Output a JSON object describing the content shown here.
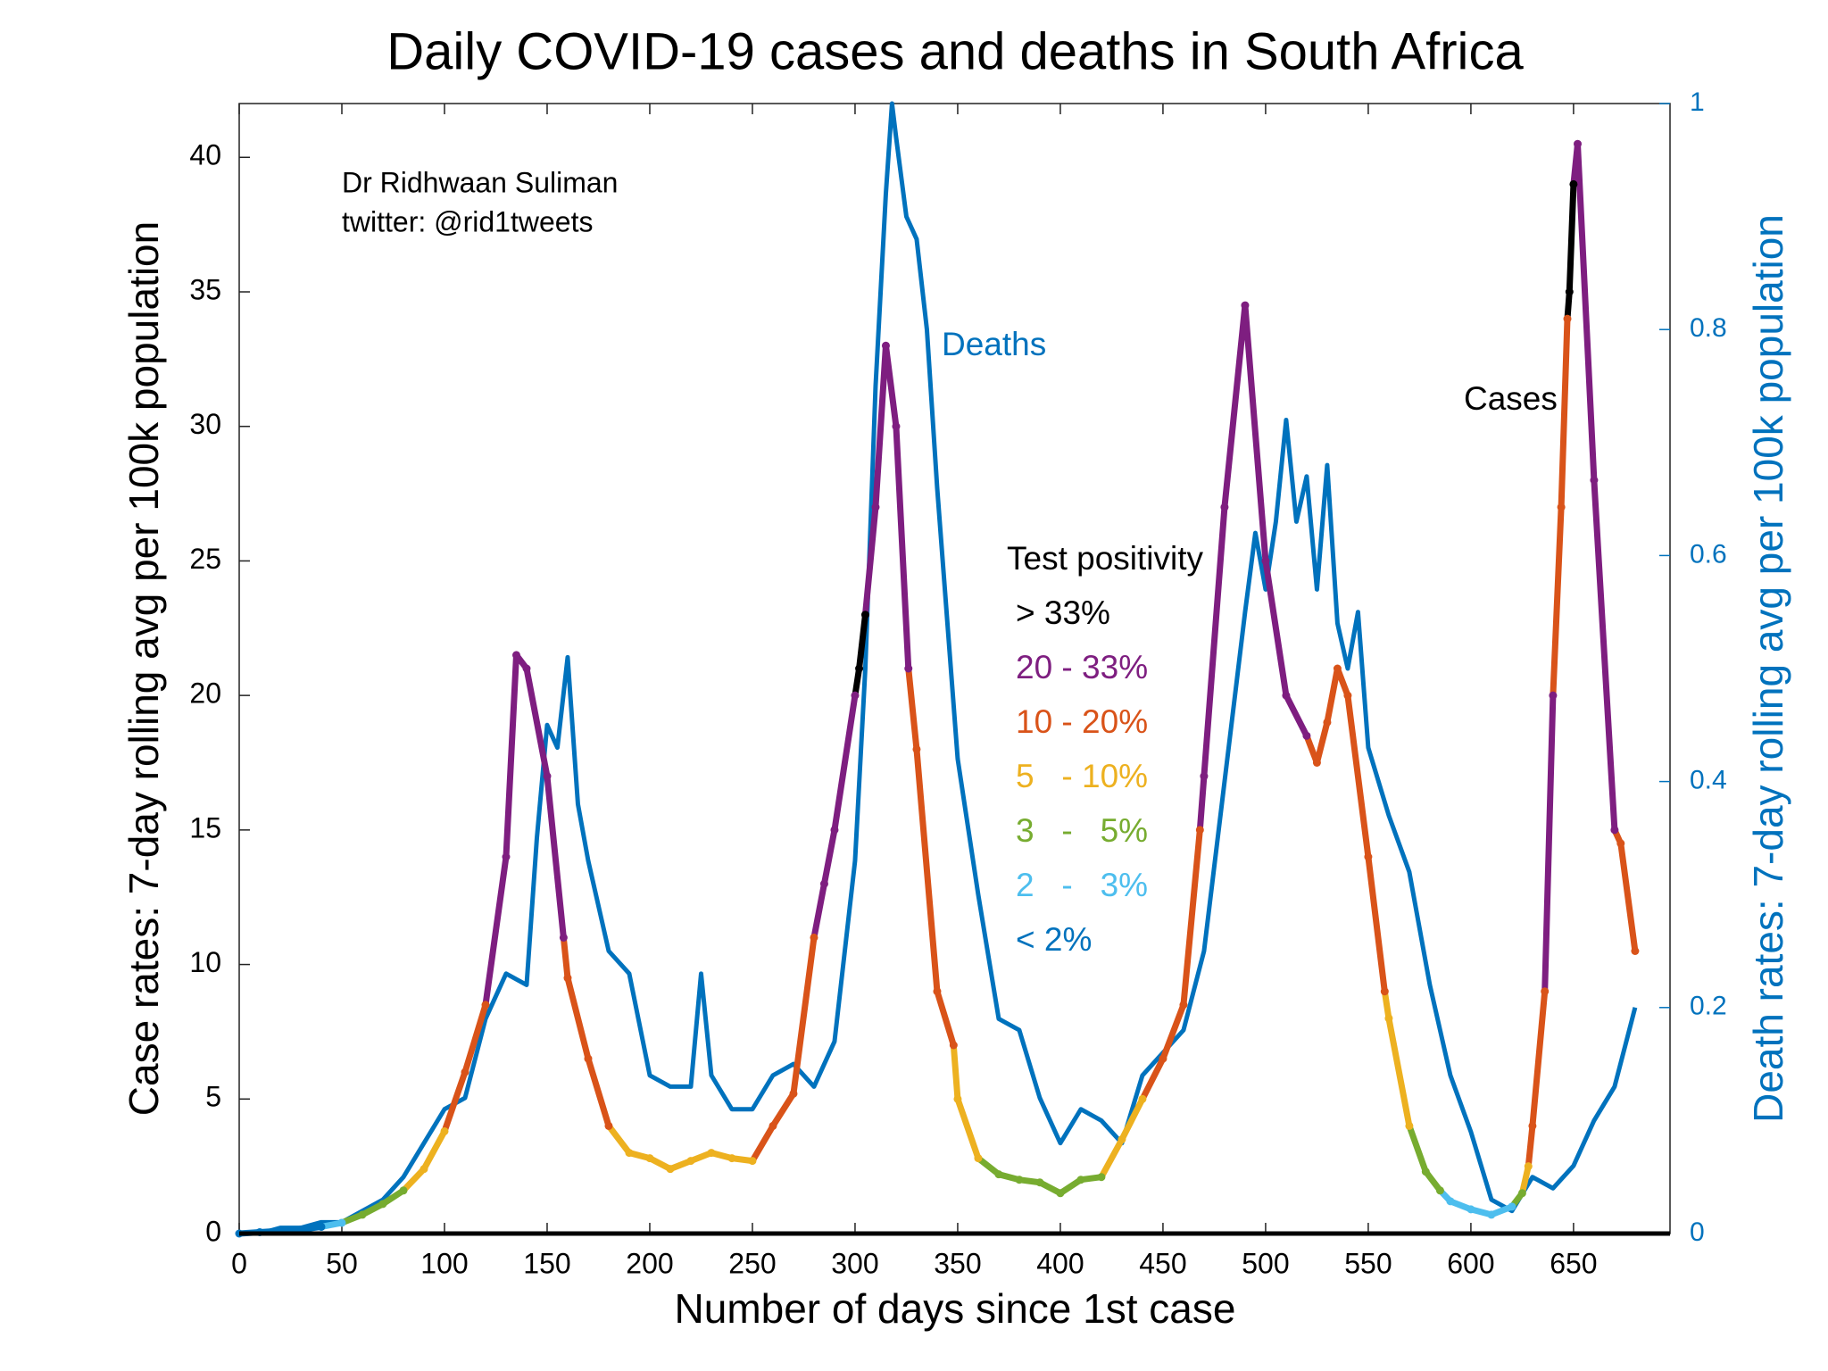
{
  "chart_data": {
    "type": "line",
    "title": "Daily COVID-19 cases and deaths in South Africa",
    "xlabel": "Number of days since 1st case",
    "ylabel": "Case rates: 7-day rolling avg per 100k population",
    "y2label": "Death rates: 7-day rolling avg per 100k population",
    "annotations": [
      "Dr Ridhwaan Suliman",
      "twitter: @rid1tweets"
    ],
    "legend_title": "Test positivity",
    "positivity_legend": [
      {
        "label": "> 33%",
        "color": "#000000"
      },
      {
        "label": "20 - 33%",
        "color": "#7e1e80"
      },
      {
        "label": "10 - 20%",
        "color": "#d95319"
      },
      {
        "label": "5   - 10%",
        "color": "#edb120"
      },
      {
        "label": "3   -   5%",
        "color": "#77ac30"
      },
      {
        "label": "2   -   3%",
        "color": "#4dbeee"
      },
      {
        "label": "< 2%",
        "color": "#0072bd"
      }
    ],
    "xlim": [
      0,
      697
    ],
    "xticks": [
      0,
      50,
      100,
      150,
      200,
      250,
      300,
      350,
      400,
      450,
      500,
      550,
      600,
      650
    ],
    "ylim": [
      0,
      42
    ],
    "yticks": [
      0,
      5,
      10,
      15,
      20,
      25,
      30,
      35,
      40
    ],
    "y2lim": [
      0,
      1
    ],
    "y2ticks": [
      0,
      0.2,
      0.4,
      0.6,
      0.8,
      1
    ],
    "y2color": "#0072bd",
    "series": [
      {
        "name": "Deaths",
        "color": "#0072bd",
        "axis": "y2",
        "x": [
          0,
          10,
          20,
          30,
          40,
          50,
          60,
          70,
          80,
          90,
          100,
          110,
          120,
          130,
          140,
          145,
          150,
          155,
          160,
          165,
          170,
          180,
          190,
          200,
          210,
          220,
          225,
          230,
          240,
          250,
          260,
          270,
          280,
          290,
          300,
          305,
          310,
          315,
          318,
          320,
          325,
          330,
          335,
          340,
          350,
          360,
          370,
          380,
          390,
          400,
          410,
          420,
          430,
          440,
          450,
          460,
          470,
          480,
          490,
          495,
          500,
          505,
          510,
          515,
          520,
          525,
          530,
          535,
          540,
          545,
          550,
          560,
          570,
          580,
          590,
          600,
          610,
          620,
          630,
          640,
          650,
          660,
          670,
          680
        ],
        "values": [
          0,
          0,
          0.005,
          0.005,
          0.01,
          0.01,
          0.02,
          0.03,
          0.05,
          0.08,
          0.11,
          0.12,
          0.19,
          0.23,
          0.22,
          0.35,
          0.45,
          0.43,
          0.51,
          0.38,
          0.33,
          0.25,
          0.23,
          0.14,
          0.13,
          0.13,
          0.23,
          0.14,
          0.11,
          0.11,
          0.14,
          0.15,
          0.13,
          0.17,
          0.33,
          0.5,
          0.75,
          0.92,
          1.0,
          0.97,
          0.9,
          0.88,
          0.8,
          0.66,
          0.42,
          0.3,
          0.19,
          0.18,
          0.12,
          0.08,
          0.11,
          0.1,
          0.08,
          0.14,
          0.16,
          0.18,
          0.25,
          0.4,
          0.55,
          0.62,
          0.57,
          0.63,
          0.72,
          0.63,
          0.67,
          0.57,
          0.68,
          0.54,
          0.5,
          0.55,
          0.43,
          0.37,
          0.32,
          0.22,
          0.14,
          0.09,
          0.03,
          0.02,
          0.05,
          0.04,
          0.06,
          0.1,
          0.13,
          0.2
        ]
      },
      {
        "name": "Cases",
        "x": [
          0,
          10,
          20,
          30,
          40,
          50,
          60,
          70,
          80,
          90,
          100,
          110,
          120,
          130,
          135,
          140,
          150,
          158,
          160,
          170,
          180,
          190,
          200,
          210,
          220,
          230,
          240,
          250,
          260,
          270,
          280,
          285,
          290,
          300,
          302,
          305,
          310,
          315,
          320,
          326,
          330,
          340,
          348,
          350,
          360,
          370,
          380,
          390,
          400,
          410,
          420,
          430,
          440,
          450,
          460,
          468,
          470,
          480,
          490,
          500,
          510,
          520,
          525,
          530,
          535,
          540,
          550,
          558,
          560,
          570,
          578,
          585,
          590,
          600,
          610,
          620,
          625,
          628,
          630,
          636,
          640,
          644,
          647,
          648,
          650,
          652,
          660,
          670,
          673,
          680
        ],
        "values": [
          0,
          0.05,
          0.1,
          0.15,
          0.25,
          0.4,
          0.7,
          1.1,
          1.6,
          2.4,
          3.8,
          6,
          8.5,
          14,
          21.5,
          21,
          17,
          11,
          9.5,
          6.5,
          4,
          3,
          2.8,
          2.4,
          2.7,
          3,
          2.8,
          2.7,
          4,
          5.2,
          11,
          13,
          15,
          20,
          21,
          23,
          27,
          33,
          30,
          21,
          18,
          9,
          7,
          5,
          2.8,
          2.2,
          2,
          1.9,
          1.5,
          2,
          2.1,
          3.5,
          5,
          6.5,
          8.5,
          15,
          17,
          27,
          34.5,
          25,
          20,
          18.5,
          17.5,
          19,
          21,
          20,
          14,
          9,
          8,
          4,
          2.3,
          1.6,
          1.2,
          0.9,
          0.7,
          1,
          1.5,
          2.5,
          4,
          9,
          20,
          27,
          34,
          35,
          39,
          40.5,
          28,
          15,
          14.5,
          10.5
        ],
        "positivity": [
          "< 2%",
          "< 2%",
          "< 2%",
          "< 2%",
          "< 2%",
          "2   -   3%",
          "3   -   5%",
          "3   -   5%",
          "3   -   5%",
          "5   - 10%",
          "5   - 10%",
          "10 - 20%",
          "10 - 20%",
          "20 - 33%",
          "20 - 33%",
          "20 - 33%",
          "20 - 33%",
          "20 - 33%",
          "10 - 20%",
          "10 - 20%",
          "10 - 20%",
          "5   - 10%",
          "5   - 10%",
          "5   - 10%",
          "5   - 10%",
          "5   - 10%",
          "5   - 10%",
          "5   - 10%",
          "10 - 20%",
          "10 - 20%",
          "10 - 20%",
          "20 - 33%",
          "20 - 33%",
          "20 - 33%",
          "> 33%",
          "> 33%",
          "20 - 33%",
          "20 - 33%",
          "20 - 33%",
          "20 - 33%",
          "10 - 20%",
          "10 - 20%",
          "10 - 20%",
          "5   - 10%",
          "5   - 10%",
          "3   -   5%",
          "3   -   5%",
          "3   -   5%",
          "3   -   5%",
          "3   -   5%",
          "3   -   5%",
          "5   - 10%",
          "5   - 10%",
          "10 - 20%",
          "10 - 20%",
          "10 - 20%",
          "20 - 33%",
          "20 - 33%",
          "20 - 33%",
          "20 - 33%",
          "20 - 33%",
          "20 - 33%",
          "10 - 20%",
          "10 - 20%",
          "10 - 20%",
          "10 - 20%",
          "10 - 20%",
          "10 - 20%",
          "5   - 10%",
          "5   - 10%",
          "3   -   5%",
          "3   -   5%",
          "2   -   3%",
          "2   -   3%",
          "2   -   3%",
          "2   -   3%",
          "3   -   5%",
          "5   - 10%",
          "10 - 20%",
          "10 - 20%",
          "20 - 33%",
          "10 - 20%",
          "10 - 20%",
          "> 33%",
          "> 33%",
          "20 - 33%",
          "20 - 33%",
          "20 - 33%",
          "10 - 20%",
          "10 - 20%"
        ]
      }
    ]
  }
}
